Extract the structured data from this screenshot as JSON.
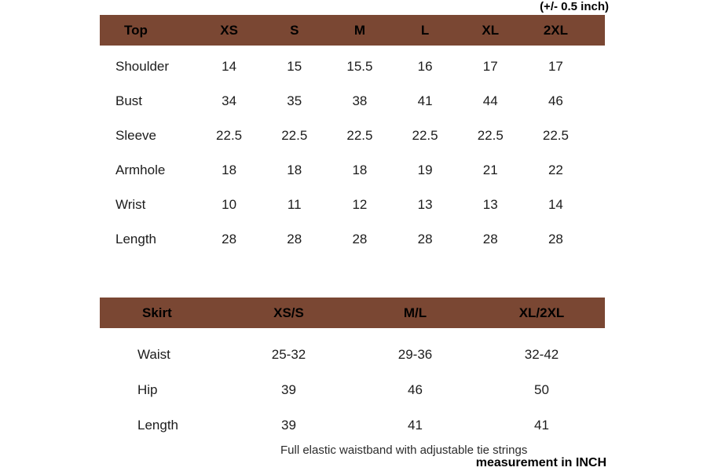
{
  "notes": {
    "tolerance": "(+/- 0.5 inch)",
    "waistband": "Full elastic waistband with adjustable tie strings",
    "unit": "measurement in INCH"
  },
  "colors": {
    "header_bg": "#7a4733",
    "header_text": "#000000",
    "body_text": "#1c1c1c"
  },
  "top_table": {
    "header": [
      "Top",
      "XS",
      "S",
      "M",
      "L",
      "XL",
      "2XL"
    ],
    "rows": [
      {
        "label": "Shoulder",
        "values": [
          "14",
          "15",
          "15.5",
          "16",
          "17",
          "17"
        ]
      },
      {
        "label": "Bust",
        "values": [
          "34",
          "35",
          "38",
          "41",
          "44",
          "46"
        ]
      },
      {
        "label": "Sleeve",
        "values": [
          "22.5",
          "22.5",
          "22.5",
          "22.5",
          "22.5",
          "22.5"
        ]
      },
      {
        "label": "Armhole",
        "values": [
          "18",
          "18",
          "18",
          "19",
          "21",
          "22"
        ]
      },
      {
        "label": "Wrist",
        "values": [
          "10",
          "11",
          "12",
          "13",
          "13",
          "14"
        ]
      },
      {
        "label": "Length",
        "values": [
          "28",
          "28",
          "28",
          "28",
          "28",
          "28"
        ]
      }
    ]
  },
  "skirt_table": {
    "header": [
      "Skirt",
      "XS/S",
      "M/L",
      "XL/2XL"
    ],
    "rows": [
      {
        "label": "Waist",
        "values": [
          "25-32",
          "29-36",
          "32-42"
        ]
      },
      {
        "label": "Hip",
        "values": [
          "39",
          "46",
          "50"
        ]
      },
      {
        "label": "Length",
        "values": [
          "39",
          "41",
          "41"
        ]
      }
    ]
  }
}
